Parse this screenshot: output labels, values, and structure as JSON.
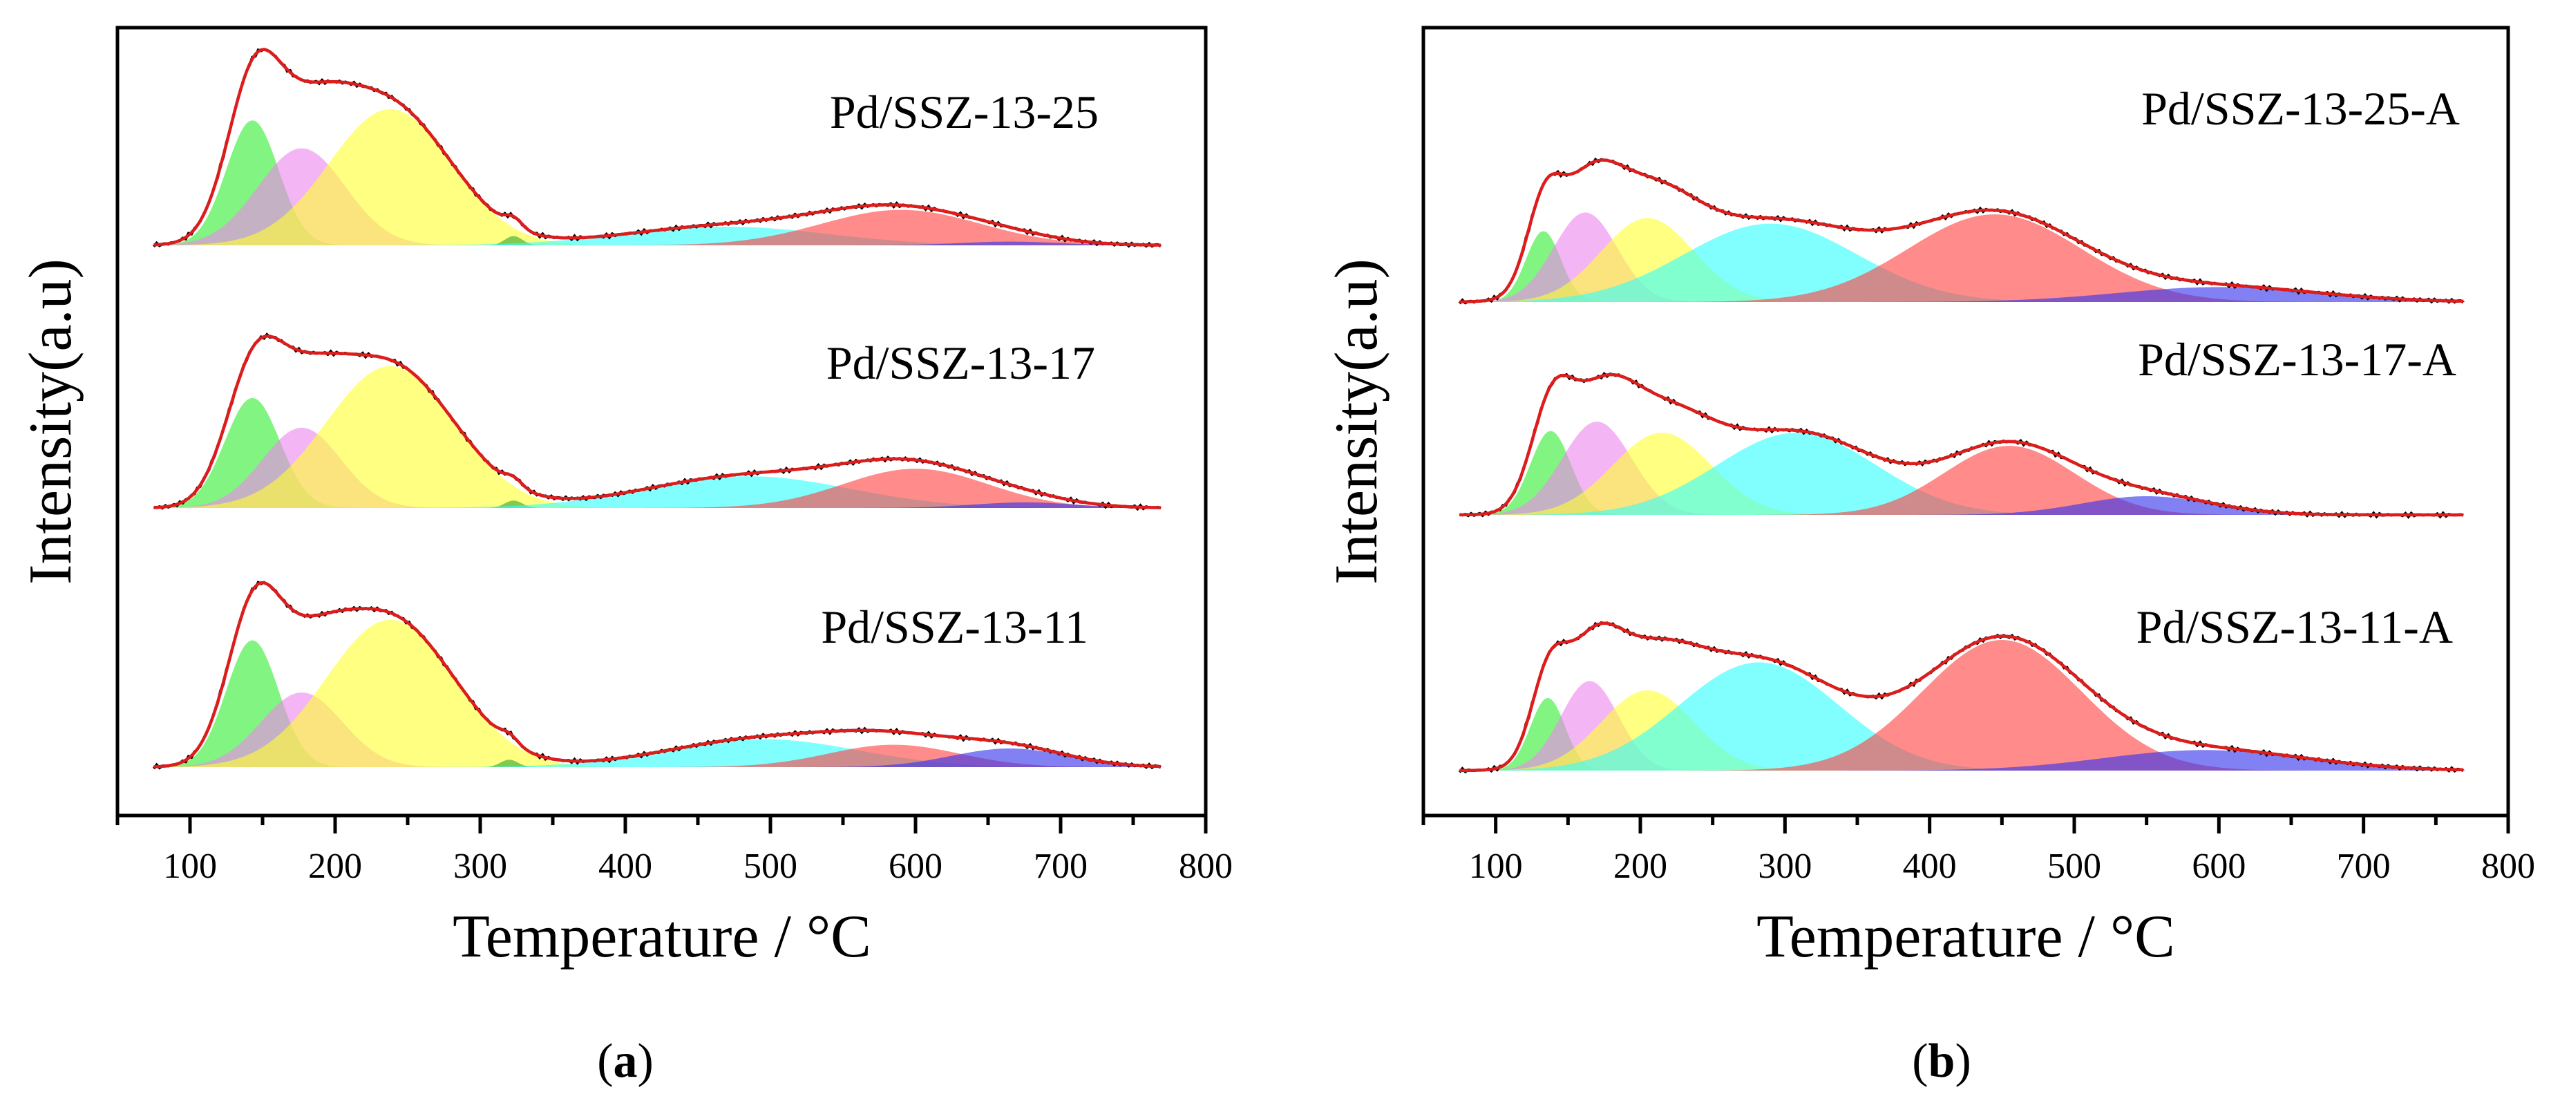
{
  "chart_data": [
    {
      "type": "area",
      "panel": "(a)",
      "panel_letter": "a",
      "xlabel": "Temperature / °C",
      "ylabel": "Intensity(a.u)",
      "xlim": [
        50,
        800
      ],
      "xticks": [
        "100",
        "200",
        "300",
        "400",
        "500",
        "600",
        "700",
        "800"
      ],
      "tick_values": [
        100,
        200,
        300,
        400,
        500,
        600,
        700,
        800
      ],
      "grid": false,
      "envelope_color": "#dd1c1c",
      "samples": [
        {
          "name": "Pd/SSZ-13-25",
          "peaks": [
            {
              "color": "#33ee33",
              "center": 143,
              "width": 18,
              "height": 0.67
            },
            {
              "color": "#ee88ee",
              "center": 177,
              "width": 30,
              "height": 0.52
            },
            {
              "color": "#ffff33",
              "center": 238,
              "width": 42,
              "height": 0.73
            },
            {
              "color": "#33aa33",
              "center": 323,
              "width": 6,
              "height": 0.05
            },
            {
              "color": "#33ffff",
              "center": 470,
              "width": 70,
              "height": 0.1
            },
            {
              "color": "#ff4444",
              "center": 590,
              "width": 55,
              "height": 0.19
            },
            {
              "color": "#3333ee",
              "center": 665,
              "width": 35,
              "height": 0.02
            }
          ]
        },
        {
          "name": "Pd/SSZ-13-17",
          "peaks": [
            {
              "color": "#33ee33",
              "center": 143,
              "width": 19,
              "height": 0.59
            },
            {
              "color": "#ee88ee",
              "center": 177,
              "width": 27,
              "height": 0.43
            },
            {
              "color": "#ffff33",
              "center": 238,
              "width": 44,
              "height": 0.76
            },
            {
              "color": "#33aa33",
              "center": 323,
              "width": 6,
              "height": 0.04
            },
            {
              "color": "#33ffff",
              "center": 485,
              "width": 70,
              "height": 0.17
            },
            {
              "color": "#ff4444",
              "center": 600,
              "width": 50,
              "height": 0.21
            },
            {
              "color": "#3333ee",
              "center": 675,
              "width": 35,
              "height": 0.03
            }
          ]
        },
        {
          "name": "Pd/SSZ-13-11",
          "peaks": [
            {
              "color": "#33ee33",
              "center": 143,
              "width": 18,
              "height": 0.68
            },
            {
              "color": "#ee88ee",
              "center": 177,
              "width": 28,
              "height": 0.4
            },
            {
              "color": "#ffff33",
              "center": 238,
              "width": 44,
              "height": 0.79
            },
            {
              "color": "#33aa33",
              "center": 320,
              "width": 6,
              "height": 0.04
            },
            {
              "color": "#33ffff",
              "center": 495,
              "width": 65,
              "height": 0.15
            },
            {
              "color": "#ff4444",
              "center": 585,
              "width": 45,
              "height": 0.12
            },
            {
              "color": "#3333ee",
              "center": 665,
              "width": 40,
              "height": 0.1
            }
          ]
        }
      ]
    },
    {
      "type": "area",
      "panel": "(b)",
      "panel_letter": "b",
      "xlabel": "Temperature / °C",
      "ylabel": "Intensity(a.u)",
      "xlim": [
        50,
        800
      ],
      "xticks": [
        "100",
        "200",
        "300",
        "400",
        "500",
        "600",
        "700",
        "800"
      ],
      "tick_values": [
        100,
        200,
        300,
        400,
        500,
        600,
        700,
        800
      ],
      "grid": false,
      "envelope_color": "#dd1c1c",
      "samples": [
        {
          "name": "Pd/SSZ-13-25-A",
          "peaks": [
            {
              "color": "#33ee33",
              "center": 133,
              "width": 12,
              "height": 0.38
            },
            {
              "color": "#ee88ee",
              "center": 162,
              "width": 22,
              "height": 0.48
            },
            {
              "color": "#ffff33",
              "center": 205,
              "width": 32,
              "height": 0.45
            },
            {
              "color": "#33ffff",
              "center": 290,
              "width": 60,
              "height": 0.42
            },
            {
              "color": "#ff4444",
              "center": 445,
              "width": 60,
              "height": 0.47
            },
            {
              "color": "#3333ee",
              "center": 600,
              "width": 70,
              "height": 0.08
            }
          ]
        },
        {
          "name": "Pd/SSZ-13-17-A",
          "peaks": [
            {
              "color": "#33ee33",
              "center": 138,
              "width": 14,
              "height": 0.45
            },
            {
              "color": "#ee88ee",
              "center": 170,
              "width": 24,
              "height": 0.5
            },
            {
              "color": "#ffff33",
              "center": 215,
              "width": 34,
              "height": 0.44
            },
            {
              "color": "#33ffff",
              "center": 308,
              "width": 55,
              "height": 0.44
            },
            {
              "color": "#ff4444",
              "center": 455,
              "width": 45,
              "height": 0.37
            },
            {
              "color": "#3333ee",
              "center": 550,
              "width": 45,
              "height": 0.1
            }
          ]
        },
        {
          "name": "Pd/SSZ-13-11-A",
          "peaks": [
            {
              "color": "#33ee33",
              "center": 136,
              "width": 12,
              "height": 0.39
            },
            {
              "color": "#ee88ee",
              "center": 165,
              "width": 20,
              "height": 0.48
            },
            {
              "color": "#ffff33",
              "center": 205,
              "width": 32,
              "height": 0.43
            },
            {
              "color": "#33ffff",
              "center": 282,
              "width": 55,
              "height": 0.58
            },
            {
              "color": "#ff4444",
              "center": 450,
              "width": 55,
              "height": 0.7
            },
            {
              "color": "#3333ee",
              "center": 590,
              "width": 70,
              "height": 0.11
            }
          ]
        }
      ]
    }
  ]
}
